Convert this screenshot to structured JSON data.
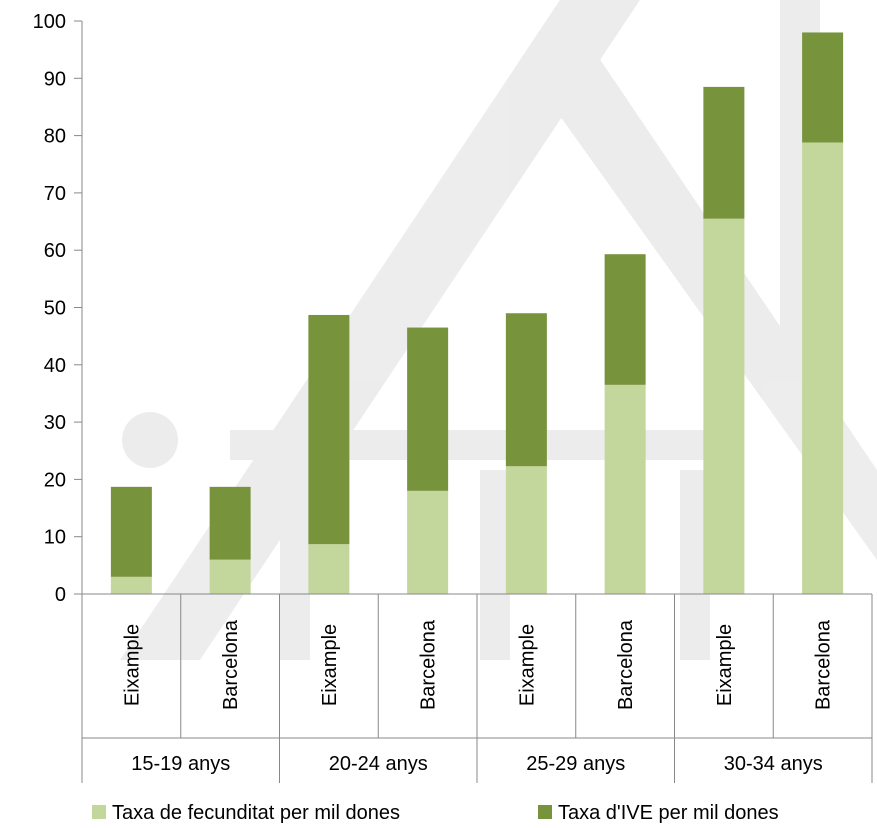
{
  "chart_data": {
    "type": "bar",
    "stacked": true,
    "groups": [
      {
        "label": "15-19 anys",
        "categories": [
          "Eixample",
          "Barcelona"
        ]
      },
      {
        "label": "20-24 anys",
        "categories": [
          "Eixample",
          "Barcelona"
        ]
      },
      {
        "label": "25-29 anys",
        "categories": [
          "Eixample",
          "Barcelona"
        ]
      },
      {
        "label": "30-34 anys",
        "categories": [
          "Eixample",
          "Barcelona"
        ]
      }
    ],
    "categories": [
      "Eixample",
      "Barcelona",
      "Eixample",
      "Barcelona",
      "Eixample",
      "Barcelona",
      "Eixample",
      "Barcelona"
    ],
    "series": [
      {
        "name": "Taxa de fecunditat per mil dones",
        "color": "#c3d69b",
        "values": [
          3.0,
          6.0,
          8.7,
          18.0,
          22.3,
          36.5,
          65.5,
          78.8
        ]
      },
      {
        "name": "Taxa d'IVE per mil dones",
        "color": "#77933c",
        "values": [
          15.7,
          12.7,
          40.0,
          28.5,
          26.7,
          22.8,
          23.0,
          19.2
        ]
      }
    ],
    "yticks": [
      0,
      10,
      20,
      30,
      40,
      50,
      60,
      70,
      80,
      90,
      100
    ],
    "ylim": [
      0,
      100
    ],
    "legend_position": "bottom",
    "grid": false
  }
}
